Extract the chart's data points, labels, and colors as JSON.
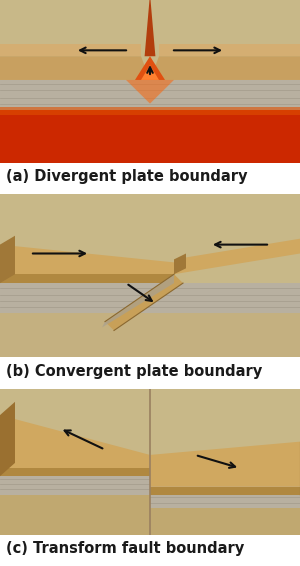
{
  "title_a": "(a) Divergent plate boundary",
  "title_b": "(b) Convergent plate boundary",
  "title_c": "(c) Transform fault boundary",
  "bg_color": "#ffffff",
  "tan_light": "#c8a96e",
  "tan_mid": "#b89050",
  "tan_dark": "#8a6830",
  "gray_light": "#c8c0b0",
  "gray_mid": "#b0a898",
  "lava_orange": "#e05010",
  "lava_bright": "#ff7020",
  "mantle_red": "#cc2200",
  "label_color": "#1a1a1a",
  "arrow_color": "#111111",
  "font_size": 10.5,
  "panel_bg": "#d4c8a8"
}
